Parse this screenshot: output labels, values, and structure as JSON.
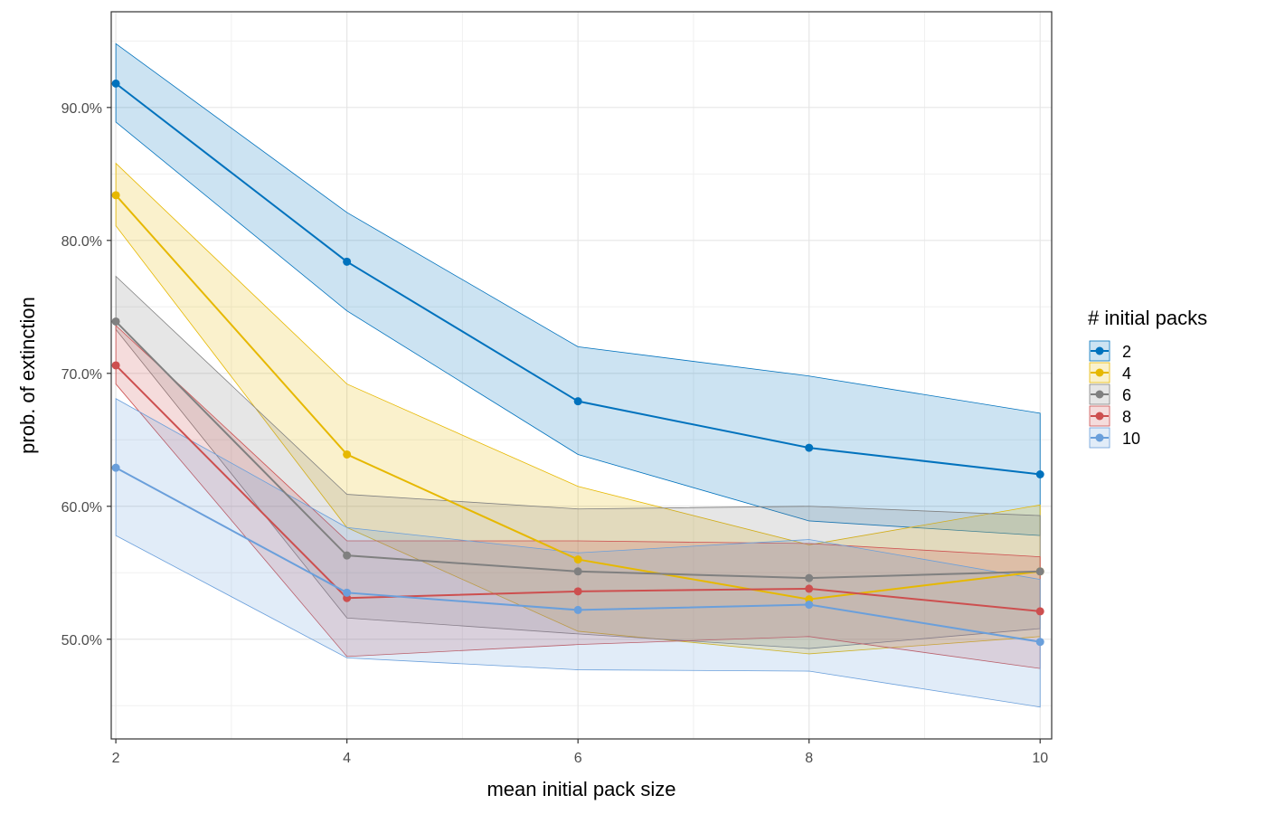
{
  "chart_data": {
    "type": "line",
    "xlabel": "mean initial pack size",
    "ylabel": "prob. of extinction",
    "legend_title": "# initial packs",
    "legend_position": "right",
    "grid": true,
    "x": [
      2,
      4,
      6,
      8,
      10
    ],
    "x_ticks": [
      "2",
      "4",
      "6",
      "8",
      "10"
    ],
    "xlim": [
      1.96,
      10.1
    ],
    "y_ticks": [
      "50.0%",
      "60.0%",
      "70.0%",
      "80.0%",
      "90.0%"
    ],
    "ylim": [
      42.5,
      97.2
    ],
    "y_unit": "%",
    "series": [
      {
        "name": "2",
        "color": "#0072BD",
        "values": [
          91.8,
          78.4,
          67.9,
          64.4,
          62.4
        ],
        "lower": [
          88.9,
          74.7,
          63.9,
          58.9,
          57.8
        ],
        "upper": [
          94.8,
          82.1,
          72.0,
          69.8,
          67.0
        ]
      },
      {
        "name": "4",
        "color": "#E6B800",
        "values": [
          83.4,
          63.9,
          56.0,
          53.0,
          55.1
        ],
        "lower": [
          81.1,
          58.4,
          50.6,
          48.9,
          50.2
        ],
        "upper": [
          85.8,
          69.2,
          61.5,
          57.1,
          60.1
        ]
      },
      {
        "name": "6",
        "color": "#808080",
        "values": [
          73.9,
          56.3,
          55.1,
          54.6,
          55.1
        ],
        "lower": [
          73.3,
          51.6,
          50.4,
          49.3,
          50.8
        ],
        "upper": [
          77.3,
          60.9,
          59.8,
          60.0,
          59.3
        ]
      },
      {
        "name": "8",
        "color": "#CD4F4F",
        "values": [
          70.6,
          53.1,
          53.6,
          53.8,
          52.1
        ],
        "lower": [
          69.2,
          48.7,
          49.6,
          50.2,
          47.8
        ],
        "upper": [
          73.6,
          57.4,
          57.4,
          57.2,
          56.2
        ]
      },
      {
        "name": "10",
        "color": "#6A9FDB",
        "values": [
          62.9,
          53.5,
          52.2,
          52.6,
          49.8
        ],
        "lower": [
          57.8,
          48.6,
          47.7,
          47.6,
          44.9
        ],
        "upper": [
          68.1,
          58.4,
          56.5,
          57.5,
          54.5
        ]
      }
    ]
  }
}
